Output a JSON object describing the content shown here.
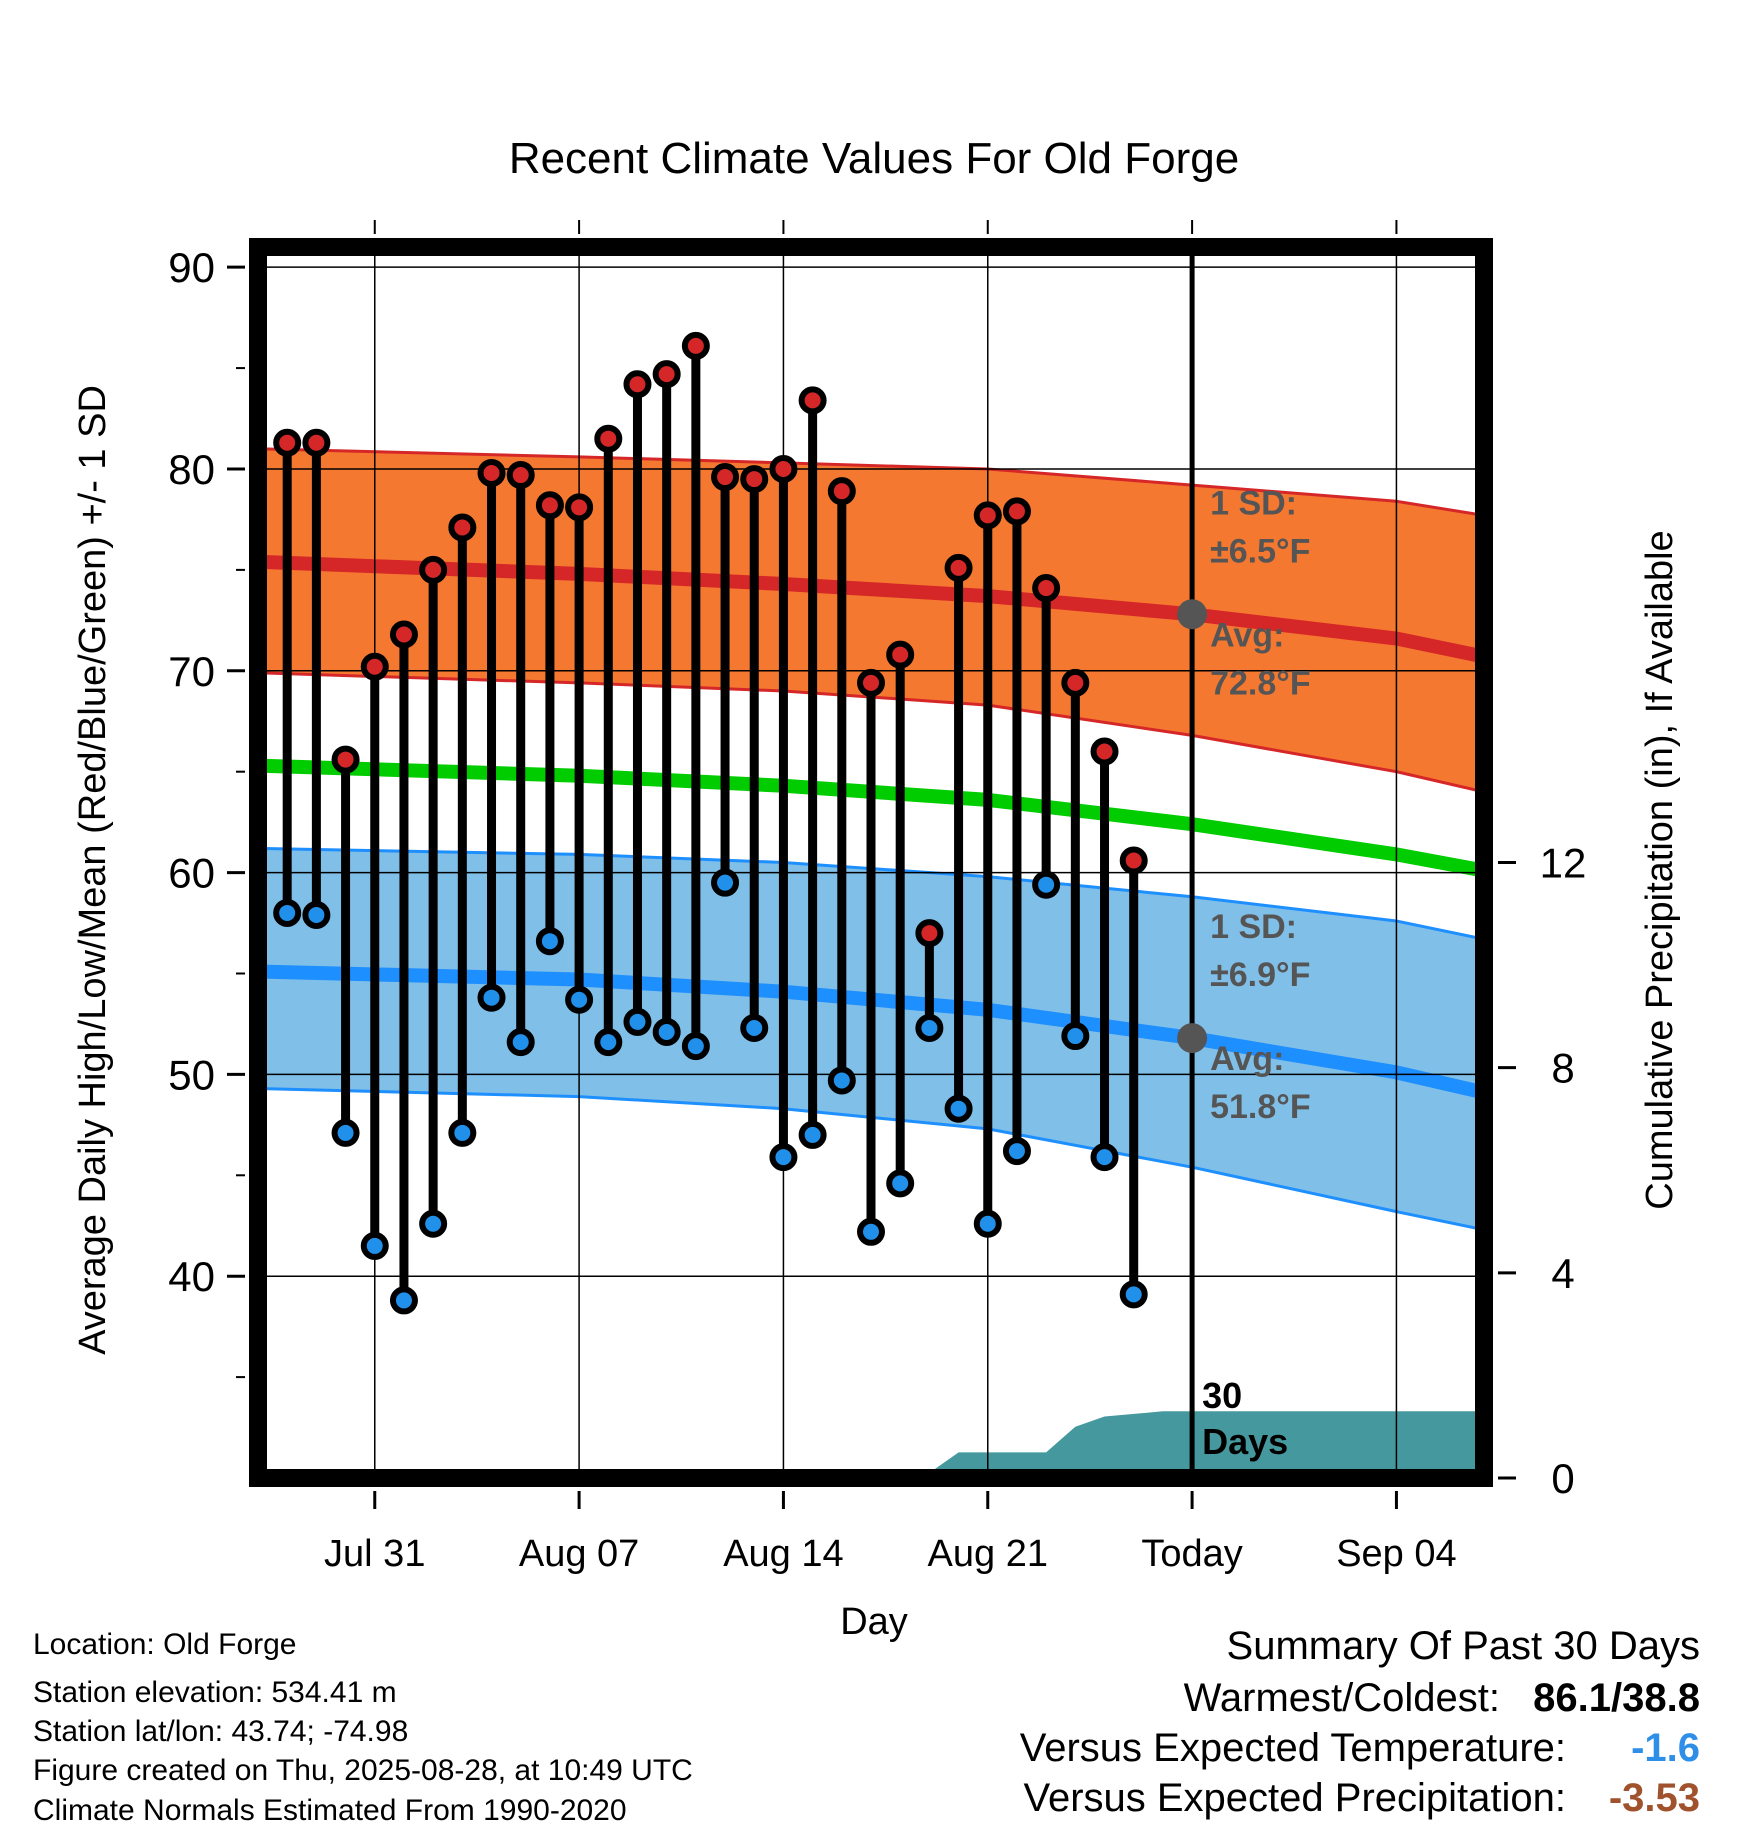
{
  "chart_data": {
    "type": "line",
    "title": "Recent Climate Values For Old Forge",
    "xlabel": "Day",
    "ylabel": "Average Daily High/Low/Mean (Red/Blue/Green) +/- 1 SD",
    "y2label": "Cumulative Precipitation (in), If Available",
    "ylim": [
      30,
      91
    ],
    "y2lim": [
      0,
      24
    ],
    "y_ticks": [
      "40",
      "50",
      "60",
      "70",
      "80",
      "90"
    ],
    "y2_ticks": [
      "0",
      "4",
      "8",
      "12"
    ],
    "x_range": [
      "2025-07-27",
      "2025-09-07"
    ],
    "x_ticks": [
      {
        "date": "2025-07-31",
        "label": "Jul 31"
      },
      {
        "date": "2025-08-07",
        "label": "Aug 07"
      },
      {
        "date": "2025-08-14",
        "label": "Aug 14"
      },
      {
        "date": "2025-08-21",
        "label": "Aug 21"
      },
      {
        "date": "2025-08-28",
        "label": "Today"
      },
      {
        "date": "2025-09-04",
        "label": "Sep 04"
      }
    ],
    "today": "2025-08-28",
    "window_label_1": "30",
    "window_label_2": "Days",
    "grid": true,
    "high_band_label": "1 SD:",
    "high_sd_label": "±6.5°F",
    "high_avg_label": "Avg:",
    "high_avg_value": "72.8°F",
    "low_band_label": "1 SD:",
    "low_sd_label": "±6.9°F",
    "low_avg_label": "Avg:",
    "low_avg_value": "51.8°F",
    "normal_high": {
      "x": [
        "2025-07-27",
        "2025-08-07",
        "2025-08-14",
        "2025-08-21",
        "2025-08-28",
        "2025-09-04",
        "2025-09-07"
      ],
      "mean": [
        75.4,
        74.8,
        74.3,
        73.7,
        72.8,
        71.6,
        70.7
      ],
      "upper": [
        81.0,
        80.6,
        80.3,
        80.0,
        79.2,
        78.4,
        77.7
      ],
      "lower": [
        69.9,
        69.4,
        69.0,
        68.3,
        66.8,
        65.0,
        64.0
      ]
    },
    "normal_mean": {
      "x": [
        "2025-07-27",
        "2025-08-07",
        "2025-08-14",
        "2025-08-21",
        "2025-08-28",
        "2025-09-04",
        "2025-09-07"
      ],
      "values": [
        65.3,
        64.8,
        64.3,
        63.6,
        62.4,
        60.9,
        60.1
      ]
    },
    "normal_low": {
      "x": [
        "2025-07-27",
        "2025-08-07",
        "2025-08-14",
        "2025-08-21",
        "2025-08-28",
        "2025-09-04",
        "2025-09-07"
      ],
      "mean": [
        55.1,
        54.7,
        54.1,
        53.2,
        51.8,
        50.1,
        49.1
      ],
      "upper": [
        61.2,
        60.9,
        60.5,
        59.8,
        58.8,
        57.6,
        56.7
      ],
      "lower": [
        49.3,
        48.9,
        48.3,
        47.3,
        45.4,
        43.2,
        42.3
      ]
    },
    "observed": {
      "dates": [
        "2025-07-28",
        "2025-07-29",
        "2025-07-30",
        "2025-07-31",
        "2025-08-01",
        "2025-08-02",
        "2025-08-03",
        "2025-08-04",
        "2025-08-05",
        "2025-08-06",
        "2025-08-07",
        "2025-08-08",
        "2025-08-09",
        "2025-08-10",
        "2025-08-11",
        "2025-08-12",
        "2025-08-13",
        "2025-08-14",
        "2025-08-15",
        "2025-08-16",
        "2025-08-17",
        "2025-08-18",
        "2025-08-19",
        "2025-08-20",
        "2025-08-21",
        "2025-08-22",
        "2025-08-23",
        "2025-08-24",
        "2025-08-25",
        "2025-08-26",
        "2025-08-27"
      ],
      "high": [
        81.3,
        81.3,
        65.6,
        70.2,
        71.8,
        75.0,
        77.1,
        79.8,
        79.7,
        78.2,
        78.1,
        81.5,
        84.2,
        84.7,
        86.1,
        79.6,
        79.5,
        80.0,
        83.4,
        78.9,
        69.4,
        70.8,
        57.0,
        75.1,
        77.7,
        77.9,
        74.1,
        69.4,
        66.0,
        60.6,
        null
      ],
      "low": [
        58.0,
        57.9,
        47.1,
        41.5,
        38.8,
        42.6,
        47.1,
        53.8,
        51.6,
        56.6,
        53.7,
        51.6,
        52.6,
        52.1,
        51.4,
        59.5,
        52.3,
        45.9,
        47.0,
        49.7,
        42.2,
        44.6,
        52.3,
        48.3,
        42.6,
        46.2,
        59.4,
        51.9,
        45.9,
        39.1,
        null
      ]
    },
    "precipitation": {
      "x": [
        "2025-08-19",
        "2025-08-20",
        "2025-08-21",
        "2025-08-23",
        "2025-08-24",
        "2025-08-25",
        "2025-08-27",
        "2025-09-07"
      ],
      "values": [
        0.1,
        0.5,
        0.5,
        0.5,
        1.0,
        1.2,
        1.3,
        1.3
      ]
    },
    "colors": {
      "high_band": "#f57830",
      "high_mean": "#d62728",
      "mean_line": "#00cc00",
      "low_band": "#80bfe8",
      "low_mean": "#1e8fff",
      "precip": "#45999e",
      "high_marker": "#d62728",
      "low_marker": "#2090ea",
      "annotation": "#555555"
    }
  },
  "info": {
    "location": "Location: Old Forge",
    "elevation": "Station elevation: 534.41 m",
    "latlon": "Station lat/lon: 43.74; -74.98",
    "created": "Figure created on Thu, 2025-08-28, at 10:49 UTC",
    "normals": "Climate Normals Estimated From 1990-2020"
  },
  "summary": {
    "title": "Summary Of Past 30 Days",
    "warmest_coldest_label": "Warmest/Coldest:",
    "warmest_coldest_value": "86.1/38.8",
    "temp_label": "Versus Expected Temperature:",
    "temp_value": "-1.6",
    "temp_color": "#2d8fe8",
    "precip_label": "Versus Expected Precipitation:",
    "precip_value": "-3.53",
    "precip_color": "#a0522d"
  }
}
